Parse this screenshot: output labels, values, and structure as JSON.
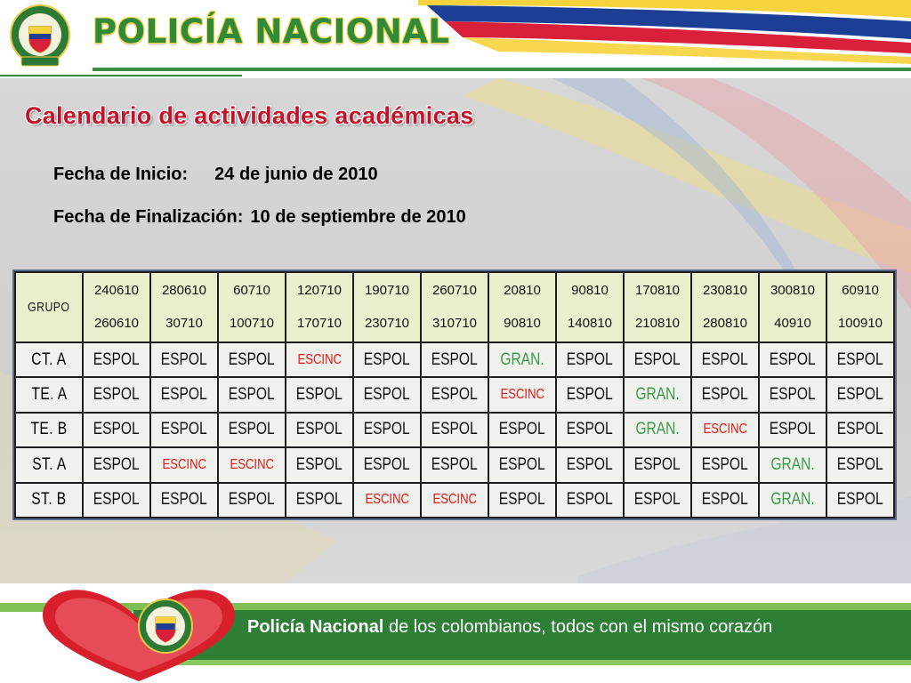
{
  "header": {
    "org_name": "POLICÍA NACIONAL",
    "crest_icon": "police-crest-icon"
  },
  "section": {
    "title": "Calendario de actividades académicas"
  },
  "dates": {
    "start_label": "Fecha de Inicio:",
    "start_value": "24 de junio de 2010",
    "end_label": "Fecha de Finalización:",
    "end_value": "10 de septiembre de 2010"
  },
  "schedule": {
    "group_header": "GRUPO",
    "periods": [
      {
        "from": "240610",
        "to": "260610"
      },
      {
        "from": "280610",
        "to": "30710"
      },
      {
        "from": "60710",
        "to": "100710"
      },
      {
        "from": "120710",
        "to": "170710"
      },
      {
        "from": "190710",
        "to": "230710"
      },
      {
        "from": "260710",
        "to": "310710"
      },
      {
        "from": "20810",
        "to": "90810"
      },
      {
        "from": "90810",
        "to": "140810"
      },
      {
        "from": "170810",
        "to": "210810"
      },
      {
        "from": "230810",
        "to": "280810"
      },
      {
        "from": "300810",
        "to": "40910"
      },
      {
        "from": "60910",
        "to": "100910"
      }
    ],
    "rows": [
      {
        "group": "CT. A",
        "cells": [
          "ESPOL",
          "ESPOL",
          "ESPOL",
          "ESCINC",
          "ESPOL",
          "ESPOL",
          "GRAN.",
          "ESPOL",
          "ESPOL",
          "ESPOL",
          "ESPOL",
          "ESPOL"
        ]
      },
      {
        "group": "TE. A",
        "cells": [
          "ESPOL",
          "ESPOL",
          "ESPOL",
          "ESPOL",
          "ESPOL",
          "ESPOL",
          "ESCINC",
          "ESPOL",
          "GRAN.",
          "ESPOL",
          "ESPOL",
          "ESPOL"
        ]
      },
      {
        "group": "TE. B",
        "cells": [
          "ESPOL",
          "ESPOL",
          "ESPOL",
          "ESPOL",
          "ESPOL",
          "ESPOL",
          "ESPOL",
          "ESPOL",
          "GRAN.",
          "ESCINC",
          "ESPOL",
          "ESPOL"
        ]
      },
      {
        "group": "ST. A",
        "cells": [
          "ESPOL",
          "ESCINC",
          "ESCINC",
          "ESPOL",
          "ESPOL",
          "ESPOL",
          "ESPOL",
          "ESPOL",
          "ESPOL",
          "ESPOL",
          "GRAN.",
          "ESPOL"
        ]
      },
      {
        "group": "ST. B",
        "cells": [
          "ESPOL",
          "ESPOL",
          "ESPOL",
          "ESPOL",
          "ESCINC",
          "ESCINC",
          "ESPOL",
          "ESPOL",
          "ESPOL",
          "ESPOL",
          "GRAN.",
          "ESPOL"
        ]
      }
    ],
    "colors": {
      "ESPOL": "#111111",
      "ESCINC": "#e01818",
      "GRAN.": "#3a9a4a"
    }
  },
  "footer": {
    "slogan_bold": "Policía Nacional",
    "slogan_rest": " de los colombianos, todos con el mismo corazón",
    "heart_icon": "heart-crest-icon"
  },
  "theme": {
    "green": "#2e7f36",
    "red": "#c3132b",
    "yellow": "#f6d33c",
    "blue": "#1c3f95"
  }
}
